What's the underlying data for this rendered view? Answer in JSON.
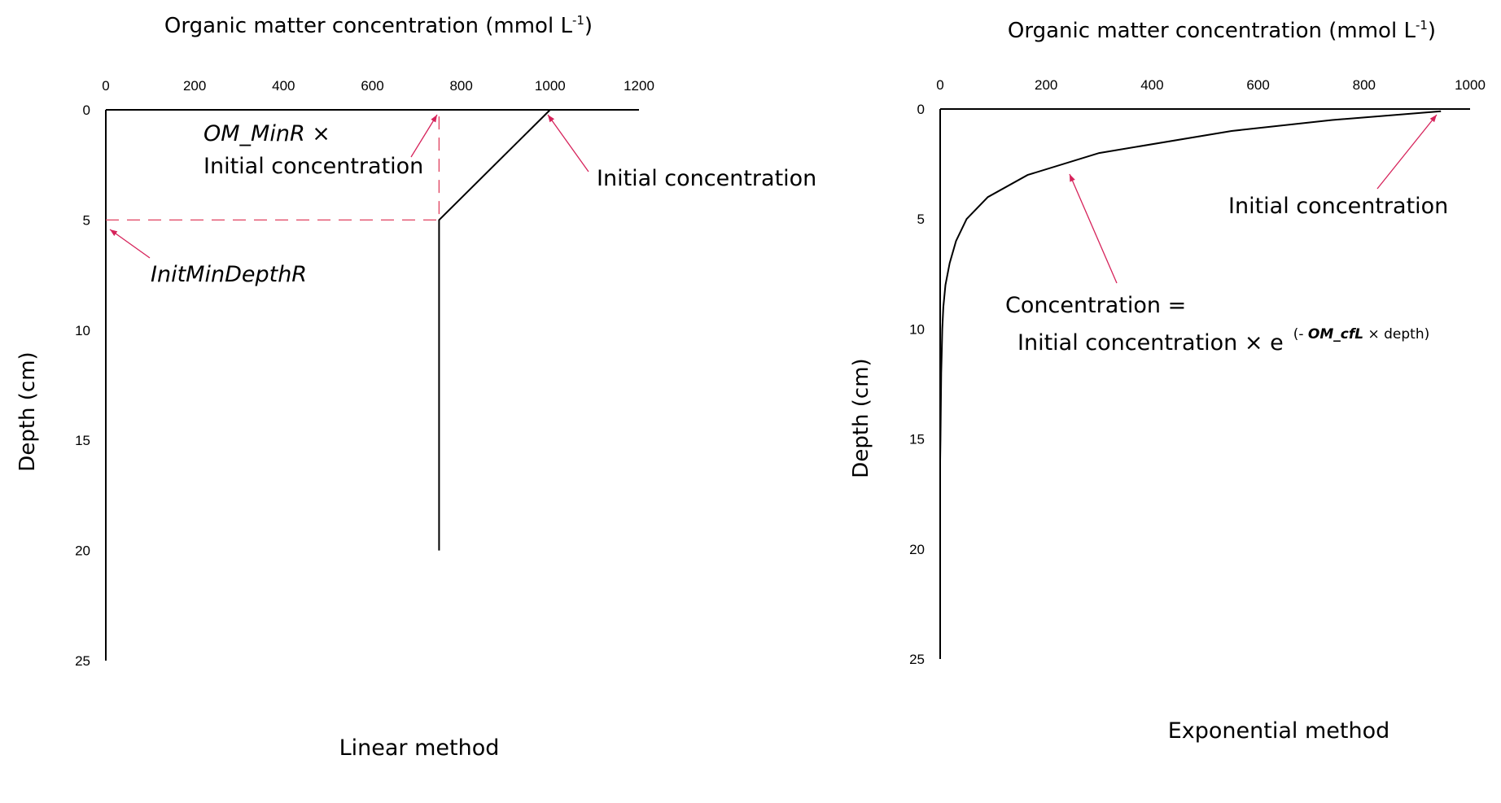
{
  "chart_data": [
    {
      "type": "line",
      "title": "",
      "xlabel": "Organic matter concentration (mmol L",
      "xlabel_sup": "-1",
      "xlabel_end": ")",
      "ylabel": "Depth (cm)",
      "xlim": [
        0,
        1200
      ],
      "ylim": [
        0,
        25
      ],
      "x_ticks": [
        0,
        200,
        400,
        600,
        800,
        1000,
        1200
      ],
      "y_ticks": [
        0,
        5,
        10,
        15,
        20,
        25
      ],
      "x_axis_position": "top",
      "y_inverted": true,
      "grid": false,
      "caption": "Linear method",
      "series": [
        {
          "x": [
            1000,
            850,
            800,
            750,
            750
          ],
          "y": [
            0,
            3,
            4,
            5,
            20
          ]
        }
      ],
      "guide_lines": [
        {
          "x": [
            0,
            750
          ],
          "y": [
            5,
            5
          ],
          "style": "dashed",
          "color": "#e0405e"
        },
        {
          "x": [
            750,
            750
          ],
          "y": [
            0.3,
            5
          ],
          "style": "dashed",
          "color": "#e0405e"
        }
      ],
      "annotations": [
        {
          "line1_italic": "OM_MinR",
          "line1_rest": " ×",
          "line2": "Initial concentration"
        },
        {
          "text": "Initial concentration"
        },
        {
          "text": "InitMinDepthR"
        }
      ],
      "colors": {
        "line": "#000000",
        "annotation": "#d6225a"
      }
    },
    {
      "type": "line",
      "title": "",
      "xlabel": "Organic matter concentration (mmol L",
      "xlabel_sup": "-1",
      "xlabel_end": ")",
      "ylabel": "Depth (cm)",
      "xlim": [
        0,
        1000
      ],
      "ylim": [
        0,
        25
      ],
      "x_ticks": [
        0,
        200,
        400,
        600,
        800,
        1000
      ],
      "y_ticks": [
        0,
        5,
        10,
        15,
        20,
        25
      ],
      "x_axis_position": "top",
      "y_inverted": true,
      "grid": false,
      "caption": "Exponential method",
      "series": [
        {
          "x": [
            945,
            740,
            550,
            300,
            165,
            90,
            50,
            30,
            18,
            10,
            6,
            4,
            3,
            2,
            1,
            0.6,
            0
          ],
          "y": [
            0.1,
            0.5,
            1,
            2,
            3,
            4,
            5,
            6,
            7,
            8,
            9,
            10,
            11,
            12,
            14,
            15,
            16
          ]
        }
      ],
      "annotations": [
        {
          "text": "Initial concentration"
        },
        {
          "line1": "Concentration =",
          "line2_prefix": "Initial concentration × e",
          "sup_open": "(- ",
          "sup_italic": "OM_cfL",
          "sup_rest": " × depth)"
        }
      ],
      "colors": {
        "line": "#000000",
        "annotation": "#d6225a"
      }
    }
  ]
}
